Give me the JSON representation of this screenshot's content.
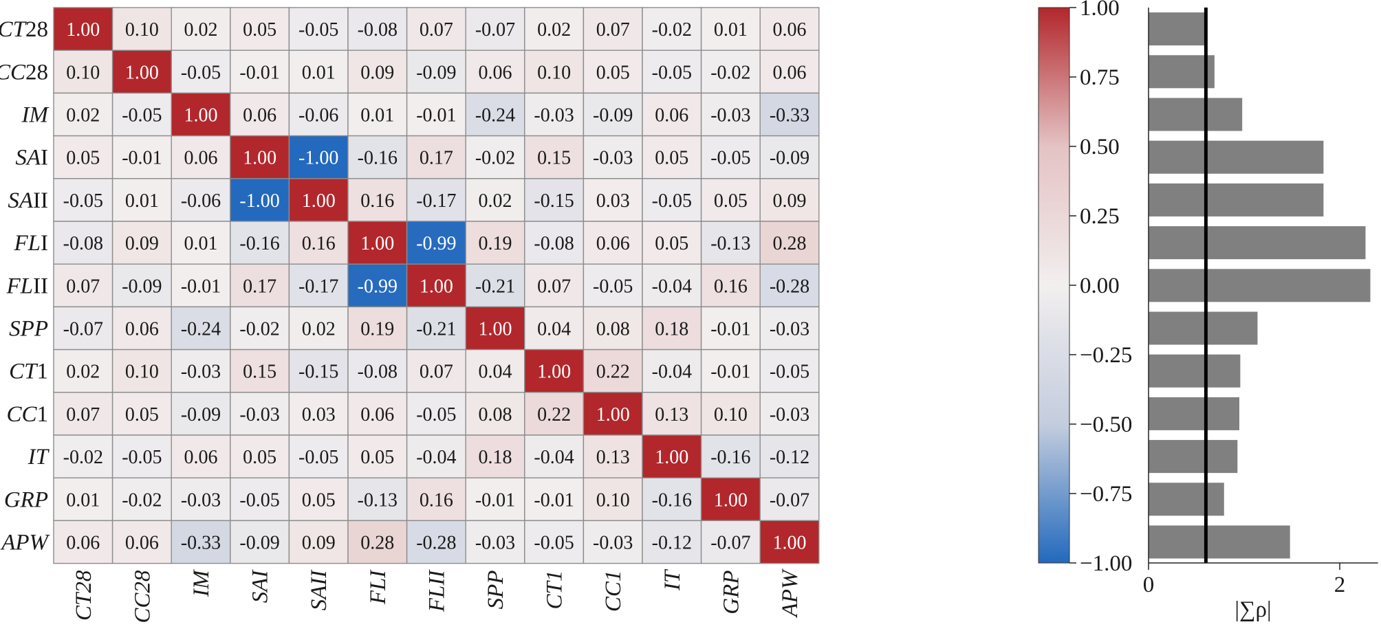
{
  "chart_data": [
    {
      "type": "heatmap",
      "rows": [
        {
          "parts": [
            {
              "t": "CT",
              "i": true
            },
            {
              "t": "28",
              "i": false
            }
          ]
        },
        {
          "parts": [
            {
              "t": "CC",
              "i": true
            },
            {
              "t": "28",
              "i": false
            }
          ]
        },
        {
          "parts": [
            {
              "t": "IM",
              "i": true
            }
          ]
        },
        {
          "parts": [
            {
              "t": "SA",
              "i": true
            },
            {
              "t": "I",
              "i": false
            }
          ]
        },
        {
          "parts": [
            {
              "t": "SA",
              "i": true
            },
            {
              "t": "II",
              "i": false
            }
          ]
        },
        {
          "parts": [
            {
              "t": "FL",
              "i": true
            },
            {
              "t": "I",
              "i": false
            }
          ]
        },
        {
          "parts": [
            {
              "t": "FL",
              "i": true
            },
            {
              "t": "II",
              "i": false
            }
          ]
        },
        {
          "parts": [
            {
              "t": "SPP",
              "i": true
            }
          ]
        },
        {
          "parts": [
            {
              "t": "CT",
              "i": true
            },
            {
              "t": "1",
              "i": false
            }
          ]
        },
        {
          "parts": [
            {
              "t": "CC",
              "i": true
            },
            {
              "t": "1",
              "i": false
            }
          ]
        },
        {
          "parts": [
            {
              "t": "IT",
              "i": true
            }
          ]
        },
        {
          "parts": [
            {
              "t": "GRP",
              "i": true
            }
          ]
        },
        {
          "parts": [
            {
              "t": "APW",
              "i": true
            }
          ]
        }
      ],
      "columns": [
        {
          "parts": [
            {
              "t": "CT28",
              "i": true
            }
          ]
        },
        {
          "parts": [
            {
              "t": "CC28",
              "i": true
            }
          ]
        },
        {
          "parts": [
            {
              "t": "IM",
              "i": true
            }
          ]
        },
        {
          "parts": [
            {
              "t": "SAI",
              "i": true
            }
          ]
        },
        {
          "parts": [
            {
              "t": "SAII",
              "i": true
            }
          ]
        },
        {
          "parts": [
            {
              "t": "FLI",
              "i": true
            }
          ]
        },
        {
          "parts": [
            {
              "t": "FLII",
              "i": true
            }
          ]
        },
        {
          "parts": [
            {
              "t": "SPP",
              "i": true
            }
          ]
        },
        {
          "parts": [
            {
              "t": "CT1",
              "i": true
            }
          ]
        },
        {
          "parts": [
            {
              "t": "CC1",
              "i": true
            }
          ]
        },
        {
          "parts": [
            {
              "t": "IT",
              "i": true
            }
          ]
        },
        {
          "parts": [
            {
              "t": "GRP",
              "i": true
            }
          ]
        },
        {
          "parts": [
            {
              "t": "APW",
              "i": true
            }
          ]
        }
      ],
      "values": [
        [
          1.0,
          0.1,
          0.02,
          0.05,
          -0.05,
          -0.08,
          0.07,
          -0.07,
          0.02,
          0.07,
          -0.02,
          0.01,
          0.06
        ],
        [
          0.1,
          1.0,
          -0.05,
          -0.01,
          0.01,
          0.09,
          -0.09,
          0.06,
          0.1,
          0.05,
          -0.05,
          -0.02,
          0.06
        ],
        [
          0.02,
          -0.05,
          1.0,
          0.06,
          -0.06,
          0.01,
          -0.01,
          -0.24,
          -0.03,
          -0.09,
          0.06,
          -0.03,
          -0.33
        ],
        [
          0.05,
          -0.01,
          0.06,
          1.0,
          -1.0,
          -0.16,
          0.17,
          -0.02,
          0.15,
          -0.03,
          0.05,
          -0.05,
          -0.09
        ],
        [
          -0.05,
          0.01,
          -0.06,
          -1.0,
          1.0,
          0.16,
          -0.17,
          0.02,
          -0.15,
          0.03,
          -0.05,
          0.05,
          0.09
        ],
        [
          -0.08,
          0.09,
          0.01,
          -0.16,
          0.16,
          1.0,
          -0.99,
          0.19,
          -0.08,
          0.06,
          0.05,
          -0.13,
          0.28
        ],
        [
          0.07,
          -0.09,
          -0.01,
          0.17,
          -0.17,
          -0.99,
          1.0,
          -0.21,
          0.07,
          -0.05,
          -0.04,
          0.16,
          -0.28
        ],
        [
          -0.07,
          0.06,
          -0.24,
          -0.02,
          0.02,
          0.19,
          -0.21,
          1.0,
          0.04,
          0.08,
          0.18,
          -0.01,
          -0.03
        ],
        [
          0.02,
          0.1,
          -0.03,
          0.15,
          -0.15,
          -0.08,
          0.07,
          0.04,
          1.0,
          0.22,
          -0.04,
          -0.01,
          -0.05
        ],
        [
          0.07,
          0.05,
          -0.09,
          -0.03,
          0.03,
          0.06,
          -0.05,
          0.08,
          0.22,
          1.0,
          0.13,
          0.1,
          -0.03
        ],
        [
          -0.02,
          -0.05,
          0.06,
          0.05,
          -0.05,
          0.05,
          -0.04,
          0.18,
          -0.04,
          0.13,
          1.0,
          -0.16,
          -0.12
        ],
        [
          0.01,
          -0.02,
          -0.03,
          -0.05,
          0.05,
          -0.13,
          0.16,
          -0.01,
          -0.01,
          0.1,
          -0.16,
          1.0,
          -0.07
        ],
        [
          0.06,
          0.06,
          -0.33,
          -0.09,
          0.09,
          0.28,
          -0.28,
          -0.03,
          -0.05,
          -0.03,
          -0.12,
          -0.07,
          1.0
        ]
      ],
      "colorbar": {
        "range": [
          -1.0,
          1.0
        ],
        "ticks": [
          "1.00",
          "0.75",
          "0.50",
          "0.25",
          "0.00",
          "−0.25",
          "−0.50",
          "−0.75",
          "−1.00"
        ],
        "colormap": "blue-white-red",
        "colors": {
          "negative": "#2369bd",
          "neutral": "#f3efef",
          "positive": "#b2272c"
        }
      },
      "grid": true
    },
    {
      "type": "bar",
      "orientation": "horizontal",
      "categories": [
        "CT28",
        "CC28",
        "IM",
        "SAI",
        "SAII",
        "FLI",
        "FLII",
        "SPP",
        "CT1",
        "CC1",
        "IT",
        "GRP",
        "APW"
      ],
      "values": [
        0.59,
        0.69,
        0.98,
        1.83,
        1.83,
        2.27,
        2.32,
        1.14,
        0.96,
        0.95,
        0.93,
        0.79,
        1.48
      ],
      "reference_line": 0.6,
      "xlim": [
        0,
        2.4
      ],
      "xticks": [
        "0",
        "2"
      ],
      "xlabel": "|∑ρ|",
      "bar_color": "#808080",
      "yticks_shown": false
    }
  ]
}
